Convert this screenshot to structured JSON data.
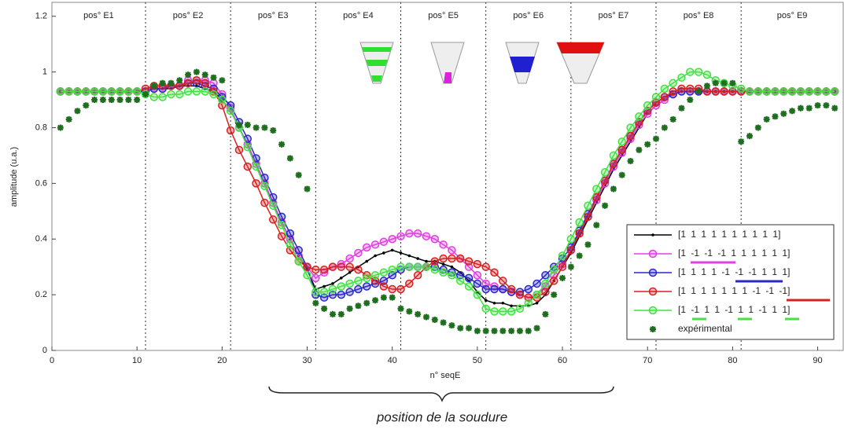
{
  "chart_data": {
    "type": "line",
    "xlabel": "n° seqE",
    "ylabel": "amplitude (u.a.)",
    "annotation": "position de la soudure",
    "region_labels": [
      "pos° E1",
      "pos° E2",
      "pos° E3",
      "pos° E4",
      "pos° E5",
      "pos° E6",
      "pos° E7",
      "pos° E8",
      "pos° E9"
    ],
    "separators": [
      11,
      21,
      31,
      41,
      51,
      61,
      71,
      81
    ],
    "xlim": [
      0,
      93
    ],
    "ylim": [
      0,
      1.25
    ],
    "xticks": [
      0,
      10,
      20,
      30,
      40,
      50,
      60,
      70,
      80,
      90
    ],
    "yticks": [
      0,
      0.2,
      0.4,
      0.6,
      0.8,
      1,
      1.2
    ],
    "x": [
      1,
      2,
      3,
      4,
      5,
      6,
      7,
      8,
      9,
      10,
      11,
      12,
      13,
      14,
      15,
      16,
      17,
      18,
      19,
      20,
      21,
      22,
      23,
      24,
      25,
      26,
      27,
      28,
      29,
      30,
      31,
      32,
      33,
      34,
      35,
      36,
      37,
      38,
      39,
      40,
      41,
      42,
      43,
      44,
      45,
      46,
      47,
      48,
      49,
      50,
      51,
      52,
      53,
      54,
      55,
      56,
      57,
      58,
      59,
      60,
      61,
      62,
      63,
      64,
      65,
      66,
      67,
      68,
      69,
      70,
      71,
      72,
      73,
      74,
      75,
      76,
      77,
      78,
      79,
      80,
      81,
      82,
      83,
      84,
      85,
      86,
      87,
      88,
      89,
      90,
      91,
      92
    ],
    "series": [
      {
        "name": "[1 1 1 1 1 1 1 1 1 1]",
        "color": "#000000",
        "marker": "dot",
        "values": [
          0.93,
          0.93,
          0.93,
          0.93,
          0.93,
          0.93,
          0.93,
          0.93,
          0.93,
          0.93,
          0.93,
          0.94,
          0.94,
          0.94,
          0.95,
          0.95,
          0.95,
          0.94,
          0.93,
          0.9,
          0.86,
          0.8,
          0.74,
          0.67,
          0.6,
          0.53,
          0.46,
          0.4,
          0.34,
          0.29,
          0.22,
          0.23,
          0.24,
          0.26,
          0.28,
          0.3,
          0.32,
          0.34,
          0.35,
          0.36,
          0.35,
          0.34,
          0.33,
          0.32,
          0.32,
          0.31,
          0.3,
          0.28,
          0.25,
          0.21,
          0.18,
          0.17,
          0.17,
          0.16,
          0.16,
          0.16,
          0.17,
          0.2,
          0.25,
          0.3,
          0.35,
          0.41,
          0.47,
          0.53,
          0.59,
          0.65,
          0.7,
          0.75,
          0.8,
          0.85,
          0.88,
          0.9,
          0.92,
          0.93,
          0.93,
          0.93,
          0.93,
          0.93,
          0.93,
          0.93,
          0.93,
          0.93,
          0.93,
          0.93,
          0.93,
          0.93,
          0.93,
          0.93,
          0.93,
          0.93,
          0.93,
          0.93
        ]
      },
      {
        "name": "[1 -1 -1 -1 1 1 1 1 1 1]",
        "color": "#e040e0",
        "marker": "circle",
        "values": [
          0.93,
          0.93,
          0.93,
          0.93,
          0.93,
          0.93,
          0.93,
          0.93,
          0.93,
          0.93,
          0.93,
          0.94,
          0.94,
          0.95,
          0.95,
          0.97,
          0.97,
          0.97,
          0.96,
          0.92,
          0.87,
          0.8,
          0.74,
          0.67,
          0.6,
          0.53,
          0.46,
          0.4,
          0.34,
          0.3,
          0.26,
          0.28,
          0.3,
          0.31,
          0.33,
          0.35,
          0.37,
          0.38,
          0.39,
          0.4,
          0.41,
          0.42,
          0.42,
          0.41,
          0.4,
          0.38,
          0.36,
          0.33,
          0.3,
          0.27,
          0.24,
          0.23,
          0.22,
          0.21,
          0.2,
          0.19,
          0.2,
          0.23,
          0.27,
          0.31,
          0.36,
          0.42,
          0.48,
          0.54,
          0.6,
          0.66,
          0.71,
          0.76,
          0.81,
          0.85,
          0.88,
          0.9,
          0.92,
          0.93,
          0.93,
          0.93,
          0.93,
          0.93,
          0.93,
          0.93,
          0.93,
          0.93,
          0.93,
          0.93,
          0.93,
          0.93,
          0.93,
          0.93,
          0.93,
          0.93,
          0.93,
          0.93
        ]
      },
      {
        "name": "[1 1 1 1 -1 -1 -1 1 1 1]",
        "color": "#2828c8",
        "marker": "circle",
        "values": [
          0.93,
          0.93,
          0.93,
          0.93,
          0.93,
          0.93,
          0.93,
          0.93,
          0.93,
          0.93,
          0.93,
          0.94,
          0.94,
          0.95,
          0.95,
          0.96,
          0.96,
          0.95,
          0.94,
          0.91,
          0.88,
          0.82,
          0.76,
          0.69,
          0.62,
          0.55,
          0.48,
          0.42,
          0.36,
          0.3,
          0.2,
          0.19,
          0.2,
          0.2,
          0.21,
          0.22,
          0.23,
          0.24,
          0.25,
          0.27,
          0.29,
          0.3,
          0.3,
          0.3,
          0.3,
          0.29,
          0.28,
          0.27,
          0.26,
          0.24,
          0.22,
          0.22,
          0.22,
          0.21,
          0.21,
          0.22,
          0.24,
          0.27,
          0.3,
          0.33,
          0.37,
          0.43,
          0.49,
          0.55,
          0.61,
          0.67,
          0.72,
          0.77,
          0.82,
          0.86,
          0.89,
          0.91,
          0.92,
          0.93,
          0.93,
          0.93,
          0.93,
          0.93,
          0.93,
          0.93,
          0.93,
          0.93,
          0.93,
          0.93,
          0.93,
          0.93,
          0.93,
          0.93,
          0.93,
          0.93,
          0.93,
          0.93
        ]
      },
      {
        "name": "[1 1 1 1 1 1 1 -1 -1 -1]",
        "color": "#d82020",
        "marker": "circle",
        "values": [
          0.93,
          0.93,
          0.93,
          0.93,
          0.93,
          0.93,
          0.93,
          0.93,
          0.93,
          0.93,
          0.94,
          0.95,
          0.95,
          0.95,
          0.95,
          0.96,
          0.97,
          0.96,
          0.93,
          0.88,
          0.79,
          0.72,
          0.66,
          0.6,
          0.53,
          0.47,
          0.41,
          0.36,
          0.32,
          0.3,
          0.29,
          0.29,
          0.3,
          0.3,
          0.3,
          0.29,
          0.27,
          0.25,
          0.23,
          0.22,
          0.22,
          0.24,
          0.27,
          0.3,
          0.32,
          0.33,
          0.33,
          0.33,
          0.32,
          0.31,
          0.3,
          0.28,
          0.25,
          0.22,
          0.2,
          0.19,
          0.19,
          0.21,
          0.25,
          0.3,
          0.36,
          0.42,
          0.48,
          0.55,
          0.61,
          0.67,
          0.72,
          0.77,
          0.82,
          0.86,
          0.89,
          0.91,
          0.93,
          0.94,
          0.94,
          0.94,
          0.93,
          0.93,
          0.93,
          0.93,
          0.93,
          0.93,
          0.93,
          0.93,
          0.93,
          0.93,
          0.93,
          0.93,
          0.93,
          0.93,
          0.93,
          0.93
        ]
      },
      {
        "name": "[1 -1 1 1 -1 1 1 -1 1 1]",
        "color": "#44e044",
        "marker": "circle",
        "values": [
          0.93,
          0.93,
          0.93,
          0.93,
          0.93,
          0.93,
          0.93,
          0.93,
          0.93,
          0.93,
          0.92,
          0.91,
          0.91,
          0.92,
          0.92,
          0.93,
          0.93,
          0.93,
          0.92,
          0.9,
          0.86,
          0.8,
          0.73,
          0.66,
          0.59,
          0.52,
          0.45,
          0.38,
          0.32,
          0.27,
          0.21,
          0.21,
          0.22,
          0.23,
          0.24,
          0.25,
          0.26,
          0.27,
          0.28,
          0.29,
          0.3,
          0.3,
          0.3,
          0.3,
          0.29,
          0.28,
          0.27,
          0.25,
          0.23,
          0.2,
          0.15,
          0.14,
          0.14,
          0.14,
          0.15,
          0.17,
          0.2,
          0.24,
          0.29,
          0.34,
          0.4,
          0.46,
          0.52,
          0.58,
          0.64,
          0.7,
          0.75,
          0.8,
          0.84,
          0.88,
          0.91,
          0.94,
          0.96,
          0.98,
          1.0,
          1.0,
          0.99,
          0.97,
          0.96,
          0.95,
          0.94,
          0.93,
          0.93,
          0.93,
          0.93,
          0.93,
          0.93,
          0.93,
          0.93,
          0.93,
          0.93,
          0.93
        ]
      },
      {
        "name": "expérimental",
        "color": "#1f6e1f",
        "marker": "star",
        "values": [
          0.8,
          0.83,
          0.86,
          0.88,
          0.9,
          0.9,
          0.9,
          0.9,
          0.9,
          0.9,
          0.92,
          0.95,
          0.96,
          0.96,
          0.97,
          0.99,
          1.0,
          0.99,
          0.98,
          0.97,
          null,
          0.81,
          0.81,
          0.8,
          0.8,
          0.79,
          0.74,
          0.69,
          0.63,
          0.58,
          0.17,
          0.15,
          0.13,
          0.13,
          0.15,
          0.16,
          0.17,
          0.18,
          0.19,
          0.19,
          0.15,
          0.14,
          0.13,
          0.12,
          0.11,
          0.1,
          0.09,
          0.08,
          0.08,
          0.07,
          0.07,
          0.07,
          0.07,
          0.07,
          0.07,
          0.07,
          0.08,
          0.13,
          0.2,
          0.26,
          0.3,
          0.34,
          0.38,
          0.45,
          0.52,
          0.58,
          0.63,
          0.68,
          0.72,
          0.74,
          0.76,
          0.8,
          0.83,
          0.87,
          0.9,
          0.93,
          0.95,
          0.96,
          0.96,
          0.96,
          0.75,
          0.77,
          0.8,
          0.83,
          0.84,
          0.85,
          0.86,
          0.87,
          0.87,
          0.88,
          0.88,
          0.87
        ]
      }
    ]
  }
}
